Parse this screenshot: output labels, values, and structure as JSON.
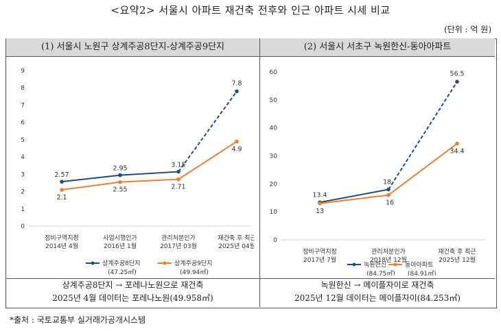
{
  "title": "<요약2> 서울시 아파트 재건축 전후와 인근 아파트 시세 비교",
  "unit": "(단위 : 억 원)",
  "source": "*출처 : 국토교통부 실거래가공개시스템",
  "left_panel": {
    "header": "(1) 서울시 노원구 상계주공8단지-상계주공9단지",
    "caption_line1": "상계주공8단지 → 포레나노원으로 재건축",
    "caption_line2": "2025년 4월 데이터는 포레나노원(49.958㎡)"
  },
  "right_panel": {
    "header": "(2) 서울시 서초구 녹원한신-동아아파트",
    "caption_line1": "녹원한신 → 메이플자이로 재건축",
    "caption_line2": "2025년 12월 데이터는 메이플자이(84.253㎡)"
  },
  "chart_data": [
    {
      "type": "line",
      "categories": [
        [
          "정비구역지정",
          "2014년 4월"
        ],
        [
          "사업시행인가",
          "2016년 1월"
        ],
        [
          "관리처분인가",
          "2017년 03월"
        ],
        [
          "재건축 후 최근",
          "2025년 04월"
        ]
      ],
      "ylim": [
        0,
        9
      ],
      "yticks": [
        0,
        1,
        2,
        3,
        4,
        5,
        6,
        7,
        8,
        9
      ],
      "grid": false,
      "legend_position": "bottom",
      "series": [
        {
          "name": "상계주공8단지",
          "name_sub": "(47.25㎡)",
          "color": "#1f4e79",
          "values": [
            2.57,
            2.95,
            3.15,
            7.8
          ],
          "dashed_last": true
        },
        {
          "name": "상계주공9단지",
          "name_sub": "(49.94㎡)",
          "color": "#ed7d31",
          "values": [
            2.1,
            2.55,
            2.71,
            4.9
          ],
          "dashed_last": false
        }
      ]
    },
    {
      "type": "line",
      "categories": [
        [
          "정비구역지정",
          "2017년 7월"
        ],
        [
          "관리처분인가",
          "2018년 12월"
        ],
        [
          "재건축 후 최근",
          "2025년 12월"
        ]
      ],
      "ylim": [
        0,
        60
      ],
      "yticks": [
        0,
        10,
        20,
        30,
        40,
        50,
        60
      ],
      "grid": false,
      "legend_position": "bottom",
      "series": [
        {
          "name": "녹원한신",
          "name_sub": "(84.75㎡)",
          "color": "#1f4e79",
          "values": [
            13.4,
            18,
            56.5
          ],
          "dashed_last": true
        },
        {
          "name": "동아아파트",
          "name_sub": "(84.91㎡)",
          "color": "#ed7d31",
          "values": [
            13,
            16,
            34.4
          ],
          "dashed_last": false
        }
      ]
    }
  ]
}
